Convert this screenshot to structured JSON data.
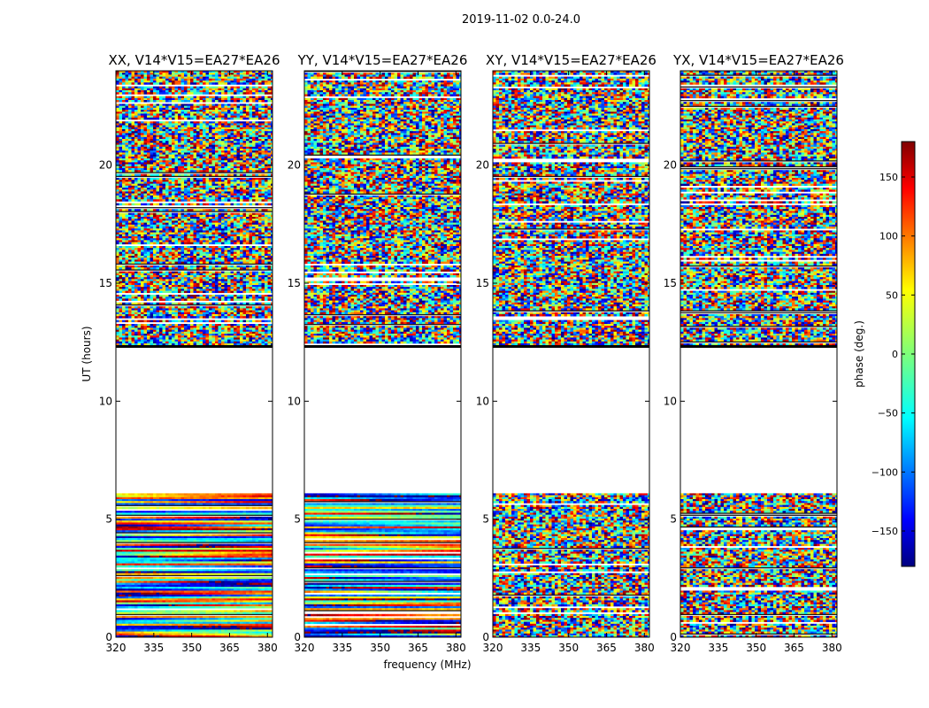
{
  "figure": {
    "suptitle": "2019-11-02 0.0-24.0",
    "xlabel": "frequency (MHz)",
    "ylabel": "UT (hours)"
  },
  "chart_data": {
    "type": "heatmap",
    "x_range": [
      320,
      382
    ],
    "y_range": [
      0,
      24
    ],
    "x_ticks": [
      320,
      335,
      350,
      365,
      380
    ],
    "y_ticks": [
      0,
      5,
      10,
      15,
      20
    ],
    "no_data_gap_hours": [
      6.1,
      12.3
    ],
    "panels": [
      {
        "title": "XX, V14*V15=EA27*EA26",
        "pol": "XX",
        "coherent_lower": true
      },
      {
        "title": "YY, V14*V15=EA27*EA26",
        "pol": "YY",
        "coherent_lower": true
      },
      {
        "title": "XY, V14*V15=EA27*EA26",
        "pol": "XY",
        "coherent_lower": false
      },
      {
        "title": "YX, V14*V15=EA27*EA26",
        "pol": "YX",
        "coherent_lower": false
      }
    ],
    "colorbar": {
      "label": "phase (deg.)",
      "range": [
        -180,
        180
      ],
      "ticks": [
        150,
        100,
        50,
        0,
        -50,
        -100,
        -150
      ],
      "tick_labels": [
        "150",
        "100",
        "50",
        "0",
        "−50",
        "−100",
        "−150"
      ],
      "colormap": "jet"
    }
  }
}
